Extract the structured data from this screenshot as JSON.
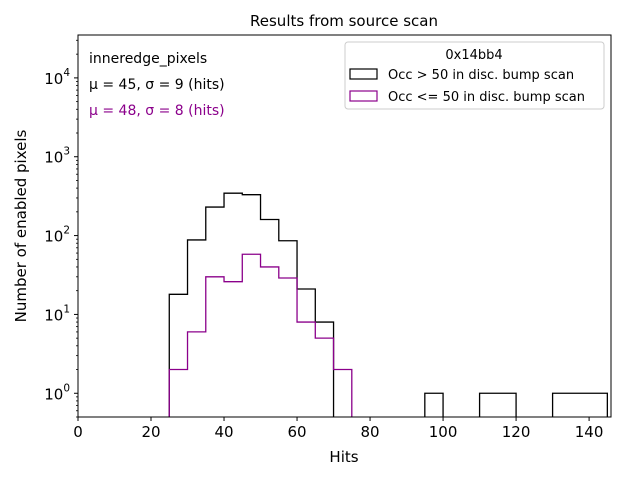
{
  "chart_data": {
    "type": "histogram",
    "title": "Results from source scan",
    "xlabel": "Hits",
    "ylabel": "Number of enabled pixels",
    "xlim": [
      0,
      146
    ],
    "ylim": [
      0.5,
      35000
    ],
    "yscale": "log",
    "x_ticks": [
      {
        "value": 0,
        "label": "0"
      },
      {
        "value": 20,
        "label": "20"
      },
      {
        "value": 40,
        "label": "40"
      },
      {
        "value": 60,
        "label": "60"
      },
      {
        "value": 80,
        "label": "80"
      },
      {
        "value": 100,
        "label": "100"
      },
      {
        "value": 120,
        "label": "120"
      },
      {
        "value": 140,
        "label": "140"
      }
    ],
    "y_ticks": [
      {
        "value": 1,
        "base": "10",
        "exp": "0"
      },
      {
        "value": 10,
        "base": "10",
        "exp": "1"
      },
      {
        "value": 100,
        "base": "10",
        "exp": "2"
      },
      {
        "value": 1000,
        "base": "10",
        "exp": "3"
      },
      {
        "value": 10000,
        "base": "10",
        "exp": "4"
      }
    ],
    "annotations": {
      "module": "inneredge_pixels",
      "stats_black": "μ = 45, σ = 9 (hits)",
      "stats_purple": "μ = 48, σ = 8 (hits)"
    },
    "legend": {
      "title": "0x14bb4",
      "placement": "top-right"
    },
    "series": [
      {
        "name": "Occ > 50 in disc. bump scan",
        "color": "#000000",
        "bins": [
          {
            "x0": 25,
            "x1": 30,
            "value": 18
          },
          {
            "x0": 30,
            "x1": 35,
            "value": 88
          },
          {
            "x0": 35,
            "x1": 40,
            "value": 230
          },
          {
            "x0": 40,
            "x1": 45,
            "value": 345
          },
          {
            "x0": 45,
            "x1": 50,
            "value": 330
          },
          {
            "x0": 50,
            "x1": 55,
            "value": 160
          },
          {
            "x0": 55,
            "x1": 60,
            "value": 86
          },
          {
            "x0": 60,
            "x1": 65,
            "value": 21
          },
          {
            "x0": 65,
            "x1": 70,
            "value": 8
          },
          {
            "x0": 95,
            "x1": 100,
            "value": 1
          },
          {
            "x0": 110,
            "x1": 120,
            "value": 1
          },
          {
            "x0": 130,
            "x1": 145,
            "value": 1
          }
        ]
      },
      {
        "name": "Occ <= 50 in disc. bump scan",
        "color": "#8b008b",
        "bins": [
          {
            "x0": 25,
            "x1": 30,
            "value": 2
          },
          {
            "x0": 30,
            "x1": 35,
            "value": 6
          },
          {
            "x0": 35,
            "x1": 40,
            "value": 30
          },
          {
            "x0": 40,
            "x1": 45,
            "value": 26
          },
          {
            "x0": 45,
            "x1": 50,
            "value": 58
          },
          {
            "x0": 50,
            "x1": 55,
            "value": 40
          },
          {
            "x0": 55,
            "x1": 60,
            "value": 29
          },
          {
            "x0": 60,
            "x1": 65,
            "value": 8
          },
          {
            "x0": 65,
            "x1": 70,
            "value": 5
          },
          {
            "x0": 70,
            "x1": 75,
            "value": 2
          }
        ]
      }
    ]
  }
}
